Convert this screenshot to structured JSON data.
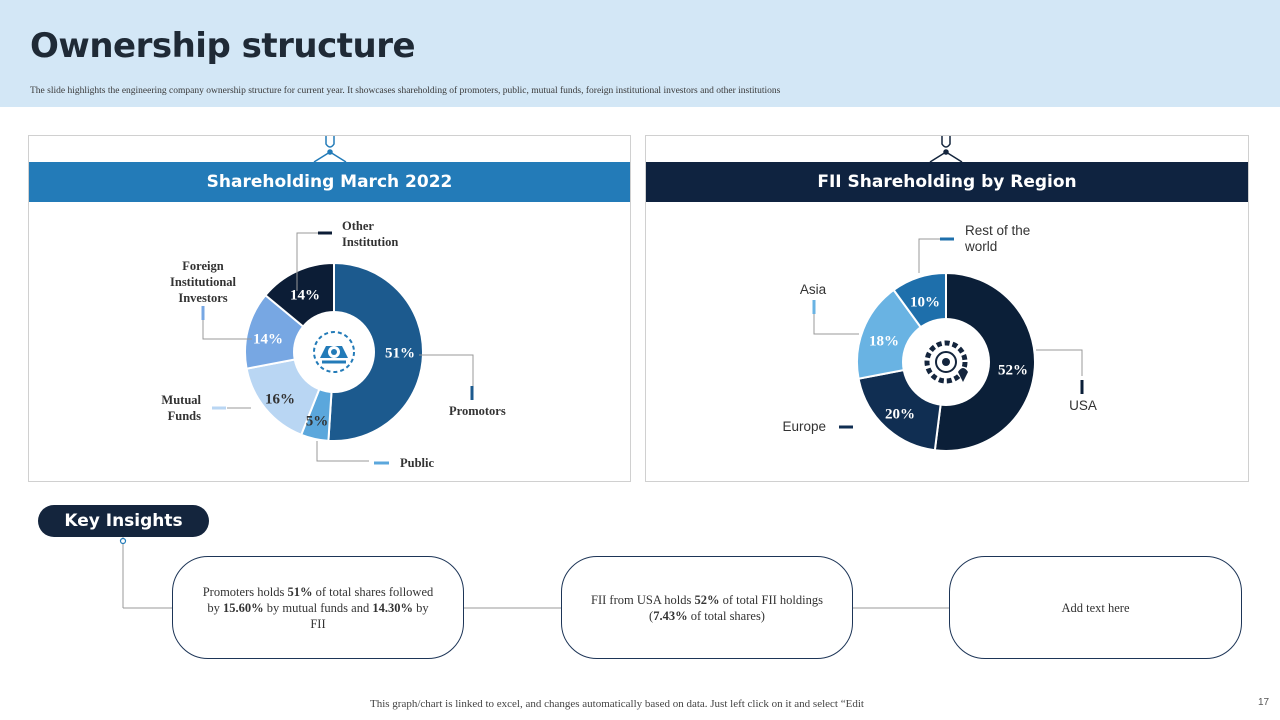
{
  "header": {
    "title": "Ownership structure",
    "subtitle": "The slide highlights the engineering company ownership structure for current year. It showcases shareholding of promoters, public, mutual funds, foreign institutional investors and other institutions"
  },
  "left_panel": {
    "heading": "Shareholding March 2022",
    "icon": "gear-hand-icon"
  },
  "right_panel": {
    "heading": "FII Shareholding by Region",
    "icon": "gear-location-icon"
  },
  "chart_data": [
    {
      "type": "pie",
      "title": "Shareholding March 2022",
      "categories": [
        "Promotors",
        "Public",
        "Mutual Funds",
        "Foreign Institutional Investors",
        "Other Institution"
      ],
      "values": [
        51,
        5,
        16,
        14,
        14
      ],
      "data_labels": [
        "51%",
        "5%",
        "16%",
        "14%",
        "14%"
      ],
      "legend_labels": [
        "Promotors",
        "Public",
        "Mutual\nFunds",
        "Foreign\nInstitutional\nInvestors",
        "Other\nInstitution"
      ],
      "colors": [
        "#1c5a8e",
        "#5ba7dc",
        "#b9d6f3",
        "#77a7e3",
        "#0c1d36"
      ]
    },
    {
      "type": "pie",
      "title": "FII Shareholding by Region",
      "categories": [
        "USA",
        "Europe",
        "Asia",
        "Rest of the world"
      ],
      "values": [
        52,
        20,
        18,
        10
      ],
      "data_labels": [
        "52%",
        "20%",
        "18%",
        "10%"
      ],
      "legend_labels": [
        "USA",
        "Europe",
        "Asia",
        "Rest of the\nworld"
      ],
      "colors": [
        "#0b1f38",
        "#102e52",
        "#69b3e3",
        "#1e6fab"
      ]
    }
  ],
  "insights": {
    "label": "Key Insights",
    "box1": {
      "pre1": "Promoters holds ",
      "b1": "51%",
      "post1": " of total shares followed by ",
      "b2": "15.60%",
      "post2": " by mutual funds and ",
      "b3": "14.30%",
      "post3": " by FII"
    },
    "box2": {
      "pre1": "FII from USA holds ",
      "b1": "52%",
      "post1": " of total FII holdings (",
      "b2": "7.43%",
      "post2": " of total shares)"
    },
    "box3": {
      "text": "Add text here"
    }
  },
  "footer": {
    "text": "This graph/chart is linked to excel,  and changes automatically based on data. Just left click on it and select “Edit",
    "page_number": "17"
  }
}
